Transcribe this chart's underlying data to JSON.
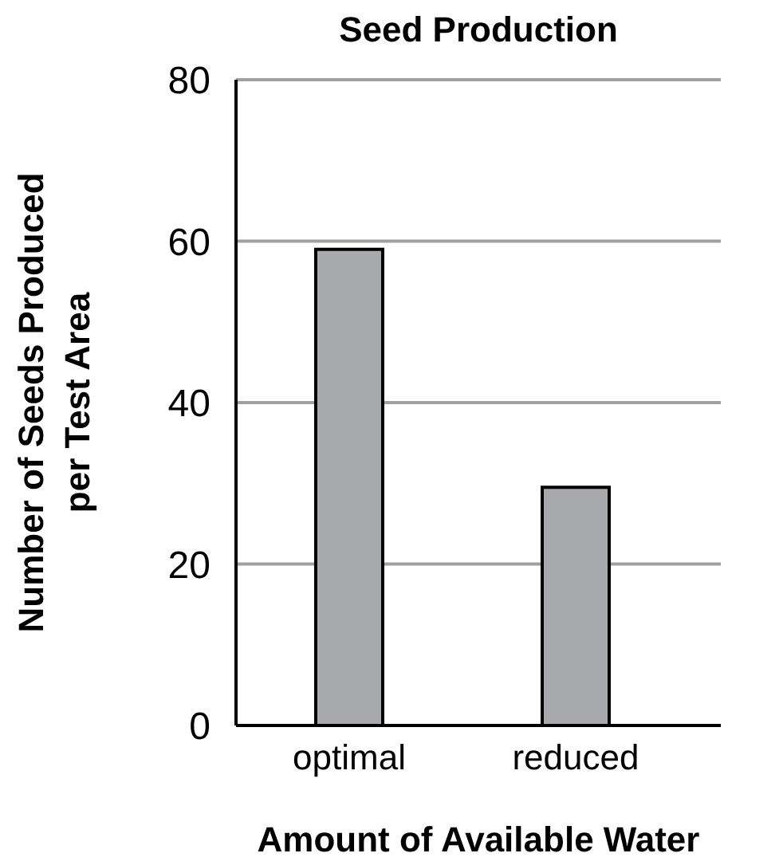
{
  "chart_data": {
    "type": "bar",
    "title": "Seed Production",
    "xlabel": "Amount of Available Water",
    "ylabel": "Number of Seeds Produced per Test Area",
    "categories": [
      "optimal",
      "reduced"
    ],
    "values": [
      59,
      29.5
    ],
    "color": "#a7a9ac",
    "ylim": [
      0,
      80
    ],
    "yticks": [
      0,
      20,
      40,
      60,
      80
    ],
    "grid": "y"
  }
}
